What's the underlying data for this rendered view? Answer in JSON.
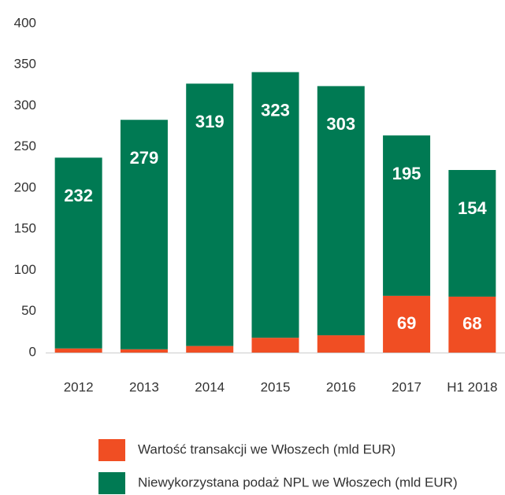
{
  "chart_data": {
    "type": "stacked_bar",
    "categories": [
      "2012",
      "2013",
      "2014",
      "2015",
      "2016",
      "2017",
      "H1 2018"
    ],
    "series": [
      {
        "name": "Wartość transakcji we Włoszech (mld EUR)",
        "color": "#f04e23",
        "values": [
          5,
          4,
          8,
          18,
          21,
          69,
          68
        ]
      },
      {
        "name": "Niewykorzystana podaż NPL we Włoszech (mld EUR)",
        "color": "#007a53",
        "values": [
          232,
          279,
          319,
          323,
          303,
          195,
          154
        ]
      }
    ],
    "ylim": [
      0,
      400
    ],
    "yticks": [
      0,
      50,
      100,
      150,
      200,
      250,
      300,
      350,
      400
    ],
    "grid": false
  }
}
